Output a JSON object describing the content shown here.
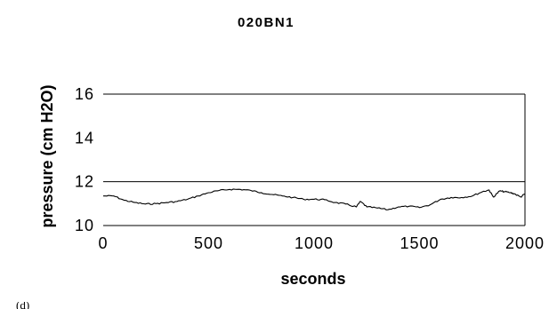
{
  "chart_data": {
    "type": "line",
    "title": "020BN1",
    "xlabel": "seconds",
    "ylabel": "pressure  (cm  H2O)",
    "xlim": [
      0,
      2000
    ],
    "ylim": [
      10,
      16
    ],
    "xticks": [
      "0",
      "500",
      "1000",
      "1500",
      "2000"
    ],
    "yticks": [
      "10",
      "12",
      "14",
      "16"
    ],
    "gridlines": [
      10,
      12,
      16
    ],
    "grid": true,
    "legend": "none",
    "line_color": "#000000",
    "series": [
      {
        "x": [
          0,
          50,
          100,
          150,
          200,
          250,
          300,
          350,
          400,
          450,
          500,
          550,
          600,
          650,
          700,
          750,
          800,
          850,
          900,
          950,
          1000,
          1050,
          1100,
          1150,
          1200,
          1220,
          1250,
          1300,
          1350,
          1400,
          1450,
          1500,
          1550,
          1600,
          1650,
          1700,
          1750,
          1800,
          1830,
          1850,
          1880,
          1900,
          1930,
          1950,
          1980,
          2000
        ],
        "y": [
          11.35,
          11.35,
          11.15,
          11.05,
          10.98,
          11.0,
          11.05,
          11.1,
          11.2,
          11.35,
          11.5,
          11.6,
          11.65,
          11.65,
          11.6,
          11.5,
          11.42,
          11.35,
          11.28,
          11.2,
          11.2,
          11.18,
          11.05,
          10.98,
          10.85,
          11.1,
          10.85,
          10.8,
          10.72,
          10.85,
          10.88,
          10.82,
          10.95,
          11.2,
          11.28,
          11.28,
          11.35,
          11.55,
          11.62,
          11.3,
          11.58,
          11.55,
          11.5,
          11.45,
          11.3,
          11.45
        ]
      }
    ]
  },
  "corner_label": "(d)"
}
